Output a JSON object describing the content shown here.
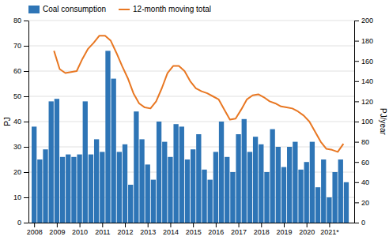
{
  "chart_data": {
    "type": "bar",
    "y_label": "PJ",
    "y2_label": "PJ/year",
    "xlim": [
      2007.75,
      2022.1
    ],
    "xticks": [
      2008,
      2009,
      2010,
      2011,
      2012,
      2013,
      2014,
      2015,
      2016,
      2017,
      2018,
      2019,
      2020,
      {
        "value": 2021,
        "label": "2021*"
      }
    ],
    "ylim": [
      0,
      80
    ],
    "yticks": [
      0,
      10,
      20,
      30,
      40,
      50,
      60,
      70,
      80
    ],
    "y2lim": [
      0,
      200
    ],
    "y2ticks": [
      0,
      20,
      40,
      60,
      80,
      100,
      120,
      140,
      160,
      180,
      200
    ],
    "grid": true,
    "legend": "upper left",
    "series": [
      {
        "name": "Coal consumption",
        "type": "bar",
        "color": "#2E75B6",
        "x": [
          2008.0,
          2008.25,
          2008.5,
          2008.75,
          2009.0,
          2009.25,
          2009.5,
          2009.75,
          2010.0,
          2010.25,
          2010.5,
          2010.75,
          2011.0,
          2011.25,
          2011.5,
          2011.75,
          2012.0,
          2012.25,
          2012.5,
          2012.75,
          2013.0,
          2013.25,
          2013.5,
          2013.75,
          2014.0,
          2014.25,
          2014.5,
          2014.75,
          2015.0,
          2015.25,
          2015.5,
          2015.75,
          2016.0,
          2016.25,
          2016.5,
          2016.75,
          2017.0,
          2017.25,
          2017.5,
          2017.75,
          2018.0,
          2018.25,
          2018.5,
          2018.75,
          2019.0,
          2019.25,
          2019.5,
          2019.75,
          2020.0,
          2020.25,
          2020.5,
          2020.75,
          2021.0,
          2021.25,
          2021.5,
          2021.75
        ],
        "values": [
          38,
          25,
          29,
          48,
          49,
          26,
          27,
          26,
          27,
          48,
          27,
          33,
          28,
          68,
          57,
          28,
          31,
          15,
          44,
          33,
          23,
          17,
          40,
          32,
          26,
          39,
          38,
          25,
          29,
          35,
          21,
          17,
          28,
          40,
          26,
          20,
          35,
          41,
          28,
          34,
          31,
          20,
          37,
          30,
          22,
          30,
          32,
          21,
          24,
          32,
          14,
          25,
          10,
          20,
          25,
          16
        ]
      },
      {
        "name": "12-month moving total",
        "type": "line",
        "axis": "y2",
        "color": "#E87722",
        "x": [
          2008.875,
          2009.125,
          2009.375,
          2009.625,
          2009.875,
          2010.125,
          2010.375,
          2010.625,
          2010.875,
          2011.125,
          2011.375,
          2011.625,
          2011.875,
          2012.125,
          2012.375,
          2012.625,
          2012.875,
          2013.125,
          2013.375,
          2013.625,
          2013.875,
          2014.125,
          2014.375,
          2014.625,
          2014.875,
          2015.125,
          2015.375,
          2015.625,
          2015.875,
          2016.125,
          2016.375,
          2016.625,
          2016.875,
          2017.125,
          2017.375,
          2017.625,
          2017.875,
          2018.125,
          2018.375,
          2018.625,
          2018.875,
          2019.125,
          2019.375,
          2019.625,
          2019.875,
          2020.125,
          2020.375,
          2020.625,
          2020.875,
          2021.125,
          2021.375,
          2021.625
        ],
        "values": [
          170,
          152,
          148,
          149,
          150,
          162,
          172,
          178,
          185,
          185,
          180,
          168,
          155,
          143,
          128,
          118,
          114,
          113,
          120,
          133,
          148,
          155,
          155,
          150,
          140,
          133,
          130,
          128,
          125,
          122,
          112,
          102,
          103,
          112,
          122,
          126,
          127,
          124,
          120,
          118,
          115,
          114,
          113,
          110,
          106,
          100,
          90,
          80,
          73,
          72,
          70,
          78
        ]
      }
    ]
  }
}
